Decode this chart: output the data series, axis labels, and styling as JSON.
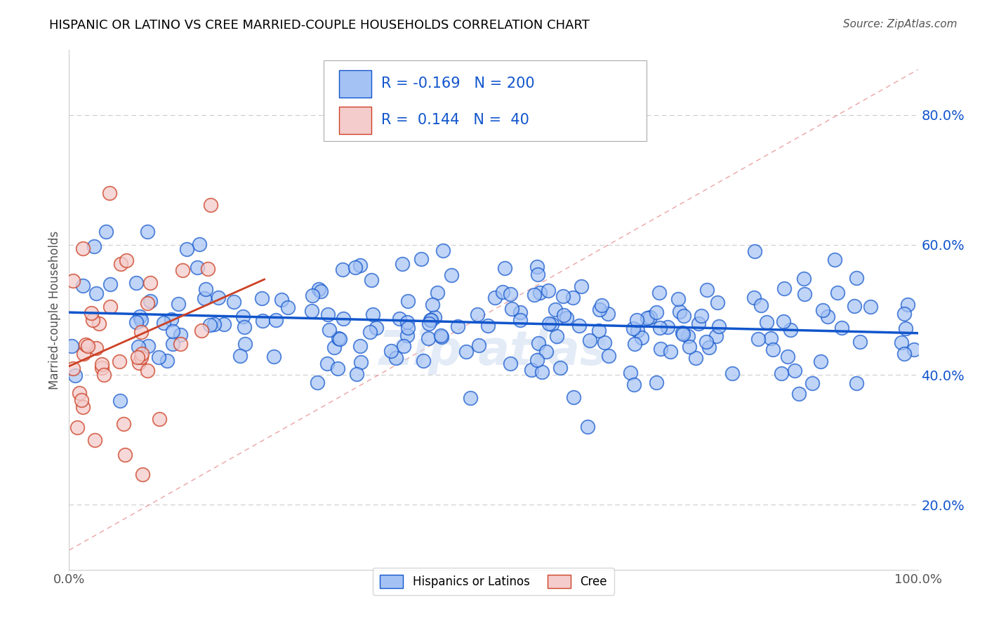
{
  "title": "HISPANIC OR LATINO VS CREE MARRIED-COUPLE HOUSEHOLDS CORRELATION CHART",
  "source": "Source: ZipAtlas.com",
  "ylabel": "Married-couple Households",
  "legend_bottom": [
    "Hispanics or Latinos",
    "Cree"
  ],
  "blue_R": -0.169,
  "blue_N": 200,
  "pink_R": 0.144,
  "pink_N": 40,
  "blue_color": "#a4c2f4",
  "pink_color": "#f4cccc",
  "blue_line_color": "#1155cc",
  "pink_line_color": "#cc4125",
  "diag_line_color": "#e06666",
  "title_color": "#000000",
  "legend_text_color": "#1155cc",
  "xlim": [
    0.0,
    1.0
  ],
  "ylim": [
    0.1,
    0.9
  ],
  "yticks": [
    0.2,
    0.4,
    0.6,
    0.8
  ],
  "xticks": [
    0.0,
    1.0
  ],
  "background_color": "#ffffff",
  "watermark": "Zip atlas",
  "source_text": "Source: ZipAtlas.com"
}
